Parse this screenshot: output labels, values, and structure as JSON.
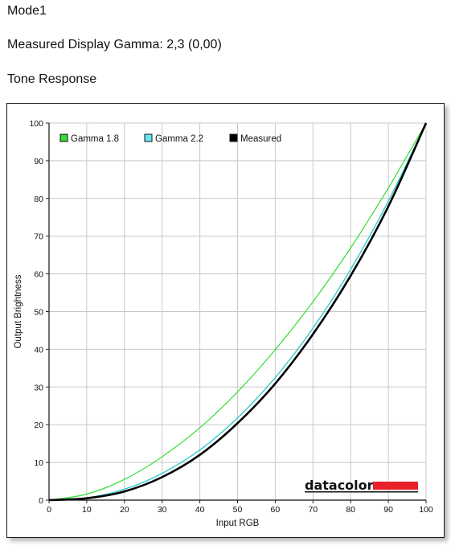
{
  "header": {
    "mode": "Mode1",
    "measured_gamma": "Measured Display Gamma: 2,3 (0,00)",
    "section": "Tone Response"
  },
  "logo": {
    "text": "datacolor",
    "bar_color": "#e8202a"
  },
  "chart_data": {
    "type": "line",
    "xlabel": "Input RGB",
    "ylabel": "Output Brightness",
    "xlim": [
      0,
      100
    ],
    "ylim": [
      0,
      100
    ],
    "xticks": [
      0,
      10,
      20,
      30,
      40,
      50,
      60,
      70,
      80,
      90,
      100
    ],
    "yticks": [
      0,
      10,
      20,
      30,
      40,
      50,
      60,
      70,
      80,
      90,
      100
    ],
    "grid": true,
    "legend_position": "top-left",
    "x": [
      0,
      10,
      20,
      30,
      40,
      50,
      60,
      70,
      80,
      90,
      100
    ],
    "series": [
      {
        "name": "Gamma 1.8",
        "color": "#33dd33",
        "swatch": "#33dd33",
        "values": [
          0,
          1.6,
          5.5,
          11.5,
          19.2,
          28.7,
          39.9,
          52.6,
          66.9,
          82.8,
          100
        ]
      },
      {
        "name": "Gamma 2.2",
        "color": "#33cccc",
        "swatch": "#66e6ee",
        "values": [
          0,
          0.6,
          2.9,
          7.1,
          13.3,
          21.8,
          32.5,
          45.6,
          61.2,
          79.3,
          100
        ]
      },
      {
        "name": "Measured",
        "color": "#000000",
        "swatch": "#000000",
        "values": [
          0,
          0.5,
          2.3,
          6.1,
          12.0,
          20.4,
          30.9,
          44.0,
          59.5,
          77.9,
          100
        ]
      }
    ]
  }
}
